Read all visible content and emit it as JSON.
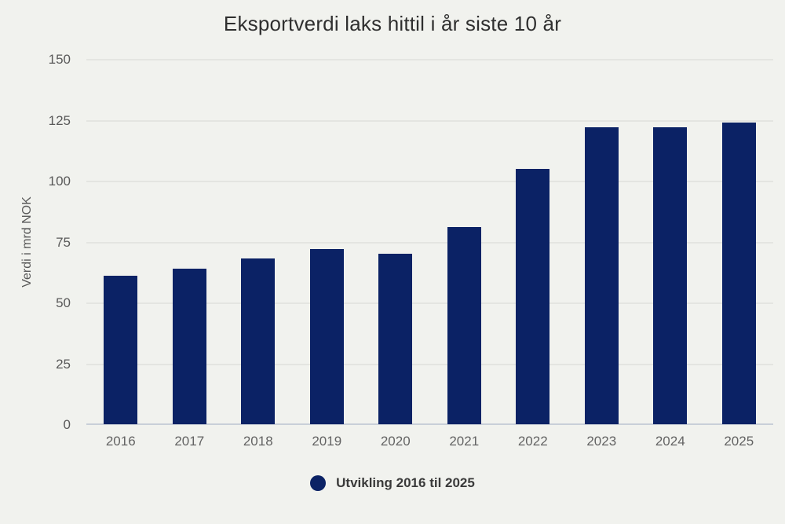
{
  "chart_data": {
    "type": "bar",
    "title": "Eksportverdi laks hittil i år siste 10 år",
    "xlabel": "",
    "ylabel": "Verdi i mrd NOK",
    "categories": [
      "2016",
      "2017",
      "2018",
      "2019",
      "2020",
      "2021",
      "2022",
      "2023",
      "2024",
      "2025"
    ],
    "values": [
      61,
      64,
      68,
      72,
      70,
      81,
      105,
      122,
      122,
      124
    ],
    "series_name": "Utvikling 2016 til 2025",
    "ylim": [
      0,
      150
    ],
    "yticks": [
      0,
      25,
      50,
      75,
      100,
      125,
      150
    ],
    "grid": "horizontal-only",
    "legend_position": "bottom-center",
    "colors": {
      "bar": "#0b2265",
      "background": "#f1f2ee",
      "gridline": "#e4e5e1",
      "axis_line": "#c9cfd8",
      "tick_label": "#595959",
      "title_text": "#2f2f2f",
      "legend_text": "#3a3a3a"
    }
  },
  "legend": {
    "label": "Utvikling 2016 til 2025"
  }
}
